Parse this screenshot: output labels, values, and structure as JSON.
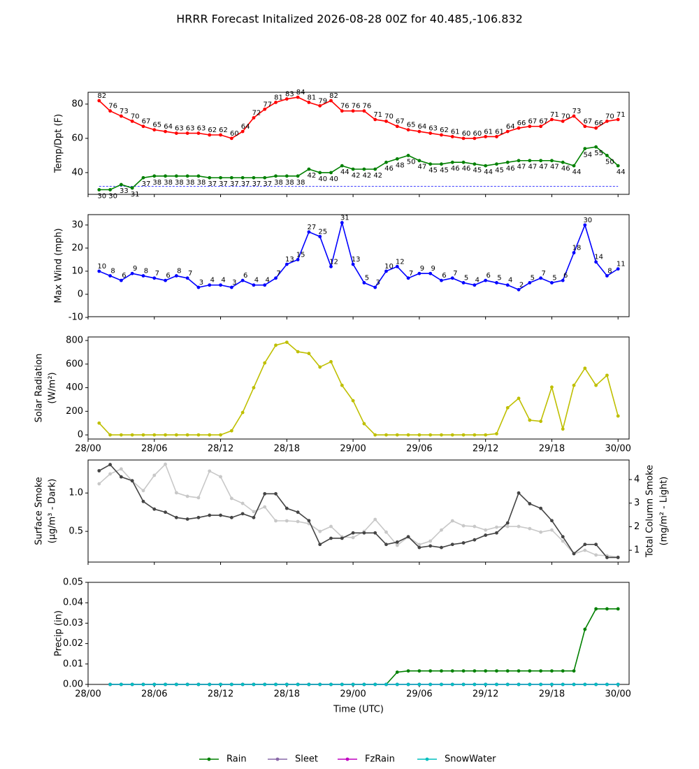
{
  "title": "HRRR Forecast Initalized 2026-08-28 00Z for 40.485,-106.832",
  "x_axis": {
    "xlim": [
      0,
      49
    ],
    "xticks": [
      {
        "value": 0,
        "label": "28/00"
      },
      {
        "value": 6,
        "label": "28/06"
      },
      {
        "value": 12,
        "label": "28/12"
      },
      {
        "value": 18,
        "label": "28/18"
      },
      {
        "value": 24,
        "label": "29/00"
      },
      {
        "value": 30,
        "label": "29/06"
      },
      {
        "value": 36,
        "label": "29/12"
      },
      {
        "value": 42,
        "label": "29/18"
      },
      {
        "value": 48,
        "label": "30/00"
      }
    ]
  },
  "chart_data": [
    {
      "type": "line",
      "ylabel": [
        "Temp/Dpt (F)"
      ],
      "ylim": [
        27.3,
        86.9
      ],
      "yticks": [
        40,
        60,
        80
      ],
      "data_labels": true,
      "xtick_labels": false,
      "hlines": [
        {
          "value": 32,
          "color": "#0000ff",
          "style": "dashed"
        }
      ],
      "x": [
        1,
        2,
        3,
        4,
        5,
        6,
        7,
        8,
        9,
        10,
        11,
        12,
        13,
        14,
        15,
        16,
        17,
        18,
        19,
        20,
        21,
        22,
        23,
        24,
        25,
        26,
        27,
        28,
        29,
        30,
        31,
        32,
        33,
        34,
        35,
        36,
        37,
        38,
        39,
        40,
        41,
        42,
        43,
        44,
        45,
        46,
        47,
        48
      ],
      "series": [
        {
          "name": "Temp",
          "color": "#ff0000",
          "values": [
            82,
            76,
            73,
            70,
            67,
            65,
            64,
            63,
            63,
            63,
            62,
            62,
            60,
            64,
            72,
            77,
            81,
            83,
            84,
            81,
            79,
            82,
            76,
            76,
            76,
            71,
            70,
            67,
            65,
            64,
            63,
            62,
            61,
            60,
            60,
            61,
            61,
            64,
            66,
            67,
            67,
            71,
            70,
            73,
            67,
            66,
            70,
            71
          ]
        },
        {
          "name": "Dewpoint",
          "color": "#008000",
          "values": [
            30,
            30,
            33,
            31,
            37,
            38,
            38,
            38,
            38,
            38,
            37,
            37,
            37,
            37,
            37,
            37,
            38,
            38,
            38,
            42,
            40,
            40,
            44,
            42,
            42,
            42,
            46,
            48,
            50,
            47,
            45,
            45,
            46,
            46,
            45,
            44,
            45,
            46,
            47,
            47,
            47,
            47,
            46,
            44,
            54,
            55,
            50,
            44
          ]
        }
      ]
    },
    {
      "type": "line",
      "ylabel": [
        "Max Wind (mph)"
      ],
      "ylim": [
        -9.7,
        34.5
      ],
      "yticks": [
        -10,
        0,
        10,
        20,
        30
      ],
      "data_labels": true,
      "xtick_labels": false,
      "x": [
        1,
        2,
        3,
        4,
        5,
        6,
        7,
        8,
        9,
        10,
        11,
        12,
        13,
        14,
        15,
        16,
        17,
        18,
        19,
        20,
        21,
        22,
        23,
        24,
        25,
        26,
        27,
        28,
        29,
        30,
        31,
        32,
        33,
        34,
        35,
        36,
        37,
        38,
        39,
        40,
        41,
        42,
        43,
        44,
        45,
        46,
        47,
        48
      ],
      "series": [
        {
          "name": "Max Wind",
          "color": "#0000ff",
          "values": [
            10,
            8,
            6,
            9,
            8,
            7,
            6,
            8,
            7,
            3,
            4,
            4,
            3,
            6,
            4,
            4,
            7,
            13,
            15,
            27,
            25,
            12,
            31,
            13,
            5,
            3,
            10,
            12,
            7,
            9,
            9,
            6,
            7,
            5,
            4,
            6,
            5,
            4,
            2,
            5,
            7,
            5,
            6,
            18,
            30,
            14,
            8,
            11
          ]
        }
      ]
    },
    {
      "type": "line",
      "ylabel": [
        "Solar Radiation",
        "(W/m²)"
      ],
      "ylim": [
        -35,
        830
      ],
      "yticks": [
        0,
        200,
        400,
        600,
        800
      ],
      "data_labels": false,
      "xtick_labels": true,
      "x": [
        1,
        2,
        3,
        4,
        5,
        6,
        7,
        8,
        9,
        10,
        11,
        12,
        13,
        14,
        15,
        16,
        17,
        18,
        19,
        20,
        21,
        22,
        23,
        24,
        25,
        26,
        27,
        28,
        29,
        30,
        31,
        32,
        33,
        34,
        35,
        36,
        37,
        38,
        39,
        40,
        41,
        42,
        43,
        44,
        45,
        46,
        47,
        48
      ],
      "series": [
        {
          "name": "Solar Radiation",
          "color": "#bfbf00",
          "values": [
            100,
            0,
            0,
            0,
            0,
            0,
            0,
            0,
            0,
            0,
            0,
            0,
            35,
            190,
            400,
            610,
            760,
            785,
            705,
            690,
            575,
            620,
            420,
            290,
            95,
            0,
            0,
            0,
            0,
            0,
            0,
            0,
            0,
            0,
            0,
            0,
            10,
            230,
            310,
            125,
            115,
            405,
            50,
            420,
            565,
            420,
            505,
            160
          ]
        }
      ]
    },
    {
      "type": "line",
      "ylabel": [
        "Surface Smoke",
        "(μg/m³ - Dark)"
      ],
      "y2label": [
        "Total Column Smoke",
        "(mg/m² - Light)"
      ],
      "ylim": [
        0.1,
        1.43
      ],
      "yticks": [
        0.5,
        {
          "value": 1,
          "label": "1.0"
        }
      ],
      "y2lim": [
        0.5,
        4.83
      ],
      "y2ticks": [
        1,
        2,
        3,
        4
      ],
      "data_labels": false,
      "xtick_labels": false,
      "x": [
        1,
        2,
        3,
        4,
        5,
        6,
        7,
        8,
        9,
        10,
        11,
        12,
        13,
        14,
        15,
        16,
        17,
        18,
        19,
        20,
        21,
        22,
        23,
        24,
        25,
        26,
        27,
        28,
        29,
        30,
        31,
        32,
        33,
        34,
        35,
        36,
        37,
        38,
        39,
        40,
        41,
        42,
        43,
        44,
        45,
        46,
        47,
        48
      ],
      "series": [
        {
          "name": "Total Column Smoke",
          "color": "#c8c8c8",
          "axis": "y2",
          "values": [
            3.82,
            4.24,
            4.45,
            3.94,
            3.53,
            4.18,
            4.65,
            3.44,
            3.29,
            3.23,
            4.36,
            4.12,
            3.2,
            2.99,
            2.64,
            2.84,
            2.25,
            2.25,
            2.22,
            2.13,
            1.8,
            2.01,
            1.57,
            1.54,
            1.8,
            2.31,
            1.77,
            1.21,
            1.57,
            1.24,
            1.39,
            1.86,
            2.25,
            2.04,
            2.01,
            1.86,
            1.98,
            2.01,
            2.01,
            1.92,
            1.77,
            1.86,
            1.39,
            0.85,
            1.0,
            0.8,
            0.77,
            0.71
          ]
        },
        {
          "name": "Surface Smoke",
          "color": "#444444",
          "values": [
            1.29,
            1.37,
            1.21,
            1.16,
            0.89,
            0.79,
            0.75,
            0.68,
            0.66,
            0.68,
            0.71,
            0.71,
            0.68,
            0.73,
            0.68,
            0.99,
            0.99,
            0.8,
            0.75,
            0.64,
            0.33,
            0.41,
            0.41,
            0.48,
            0.48,
            0.48,
            0.33,
            0.36,
            0.43,
            0.29,
            0.31,
            0.29,
            0.33,
            0.35,
            0.39,
            0.45,
            0.48,
            0.61,
            1.0,
            0.86,
            0.8,
            0.64,
            0.43,
            0.21,
            0.33,
            0.33,
            0.16,
            0.16
          ]
        }
      ]
    },
    {
      "type": "line",
      "ylabel": [
        "Precip (in)"
      ],
      "xlabel": "Time (UTC)",
      "ylim": [
        0,
        0.05
      ],
      "yticks": [
        {
          "value": 0,
          "label": "0.00"
        },
        0.01,
        0.02,
        0.03,
        0.04,
        0.05
      ],
      "data_labels": false,
      "xtick_labels": true,
      "legend": "bottom",
      "x": [
        2,
        3,
        4,
        5,
        6,
        7,
        8,
        9,
        10,
        11,
        12,
        13,
        14,
        15,
        16,
        17,
        18,
        19,
        20,
        21,
        22,
        23,
        24,
        25,
        26,
        27,
        28,
        29,
        30,
        31,
        32,
        33,
        34,
        35,
        36,
        37,
        38,
        39,
        40,
        41,
        42,
        43,
        44,
        45,
        46,
        47,
        48
      ],
      "series": [
        {
          "name": "Rain",
          "color": "#008000",
          "values": [
            0,
            0,
            0,
            0,
            0,
            0,
            0,
            0,
            0,
            0,
            0,
            0,
            0,
            0,
            0,
            0,
            0,
            0,
            0,
            0,
            0,
            0,
            0,
            0,
            0,
            0,
            0.006,
            0.0066,
            0.0066,
            0.0066,
            0.0066,
            0.0066,
            0.0066,
            0.0066,
            0.0066,
            0.0066,
            0.0066,
            0.0066,
            0.0066,
            0.0066,
            0.0066,
            0.0066,
            0.0066,
            0.027,
            0.037,
            0.037,
            0.037
          ]
        },
        {
          "name": "Sleet",
          "color": "#8968a8",
          "values": [
            0,
            0,
            0,
            0,
            0,
            0,
            0,
            0,
            0,
            0,
            0,
            0,
            0,
            0,
            0,
            0,
            0,
            0,
            0,
            0,
            0,
            0,
            0,
            0,
            0,
            0,
            0,
            0,
            0,
            0,
            0,
            0,
            0,
            0,
            0,
            0,
            0,
            0,
            0,
            0,
            0,
            0,
            0,
            0,
            0,
            0,
            0
          ]
        },
        {
          "name": "FzRain",
          "color": "#c000c0",
          "values": [
            0,
            0,
            0,
            0,
            0,
            0,
            0,
            0,
            0,
            0,
            0,
            0,
            0,
            0,
            0,
            0,
            0,
            0,
            0,
            0,
            0,
            0,
            0,
            0,
            0,
            0,
            0,
            0,
            0,
            0,
            0,
            0,
            0,
            0,
            0,
            0,
            0,
            0,
            0,
            0,
            0,
            0,
            0,
            0,
            0,
            0,
            0
          ]
        },
        {
          "name": "SnowWater",
          "color": "#00bfbf",
          "values": [
            0,
            0,
            0,
            0,
            0,
            0,
            0,
            0,
            0,
            0,
            0,
            0,
            0,
            0,
            0,
            0,
            0,
            0,
            0,
            0,
            0,
            0,
            0,
            0,
            0,
            0,
            0,
            0,
            0,
            0,
            0,
            0,
            0,
            0,
            0,
            0,
            0,
            0,
            0,
            0,
            0,
            0,
            0,
            0,
            0,
            0,
            0
          ]
        }
      ]
    }
  ]
}
